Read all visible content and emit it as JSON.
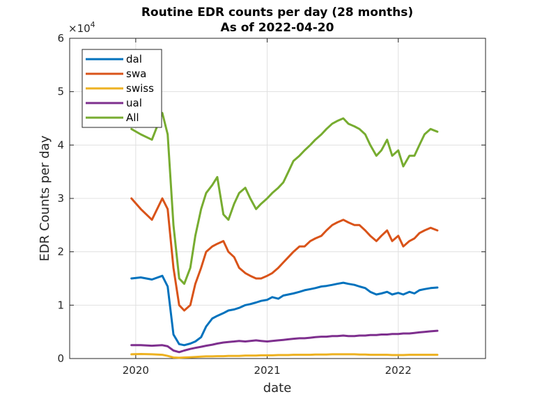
{
  "chart_data": {
    "type": "line",
    "title": "Routine EDR counts per day (28 months)",
    "subtitle": "As of 2022-04-20",
    "xlabel": "date",
    "ylabel": "EDR Counts per day",
    "y_exponent_label": "×10",
    "y_exponent_power": "4",
    "xlim": [
      "2019-07-01",
      "2022-09-01"
    ],
    "ylim": [
      0,
      60000
    ],
    "x_ticks": [
      "2020",
      "2021",
      "2022"
    ],
    "y_ticks": [
      "0",
      "1",
      "2",
      "3",
      "4",
      "5",
      "6"
    ],
    "grid": true,
    "legend_position": "top-left",
    "x": [
      "2019-12-20",
      "2020-01-15",
      "2020-02-15",
      "2020-03-15",
      "2020-03-30",
      "2020-04-15",
      "2020-05-01",
      "2020-05-15",
      "2020-06-01",
      "2020-06-15",
      "2020-07-01",
      "2020-07-15",
      "2020-08-01",
      "2020-08-15",
      "2020-09-01",
      "2020-09-15",
      "2020-10-01",
      "2020-10-15",
      "2020-11-01",
      "2020-11-15",
      "2020-12-01",
      "2020-12-15",
      "2021-01-01",
      "2021-01-15",
      "2021-02-01",
      "2021-02-15",
      "2021-03-01",
      "2021-03-15",
      "2021-04-01",
      "2021-04-15",
      "2021-05-01",
      "2021-05-15",
      "2021-06-01",
      "2021-06-15",
      "2021-07-01",
      "2021-07-15",
      "2021-08-01",
      "2021-08-15",
      "2021-09-01",
      "2021-09-15",
      "2021-10-01",
      "2021-10-15",
      "2021-11-01",
      "2021-11-15",
      "2021-12-01",
      "2021-12-15",
      "2022-01-01",
      "2022-01-15",
      "2022-02-01",
      "2022-02-15",
      "2022-03-01",
      "2022-03-15",
      "2022-04-01",
      "2022-04-20"
    ],
    "series": [
      {
        "name": "dal",
        "color": "#0072BD",
        "values": [
          15000,
          15200,
          14800,
          15500,
          13500,
          4500,
          2700,
          2500,
          2800,
          3200,
          4000,
          6000,
          7500,
          8000,
          8500,
          9000,
          9200,
          9500,
          10000,
          10200,
          10500,
          10800,
          11000,
          11500,
          11200,
          11800,
          12000,
          12200,
          12500,
          12800,
          13000,
          13200,
          13500,
          13600,
          13800,
          14000,
          14200,
          14000,
          13800,
          13500,
          13200,
          12500,
          12000,
          12200,
          12500,
          12000,
          12300,
          12000,
          12500,
          12200,
          12800,
          13000,
          13200,
          13300
        ]
      },
      {
        "name": "swa",
        "color": "#D95319",
        "values": [
          30000,
          28000,
          26000,
          30000,
          28000,
          17000,
          10000,
          9000,
          10000,
          14000,
          17000,
          20000,
          21000,
          21500,
          22000,
          20000,
          19000,
          17000,
          16000,
          15500,
          15000,
          15000,
          15500,
          16000,
          17000,
          18000,
          19000,
          20000,
          21000,
          21000,
          22000,
          22500,
          23000,
          24000,
          25000,
          25500,
          26000,
          25500,
          25000,
          25000,
          24000,
          23000,
          22000,
          23000,
          24000,
          22000,
          23000,
          21000,
          22000,
          22500,
          23500,
          24000,
          24500,
          24000
        ]
      },
      {
        "name": "swiss",
        "color": "#EDB120",
        "values": [
          800,
          850,
          800,
          700,
          500,
          200,
          150,
          200,
          250,
          300,
          350,
          400,
          400,
          450,
          450,
          500,
          500,
          500,
          550,
          550,
          550,
          600,
          600,
          600,
          650,
          650,
          650,
          700,
          700,
          700,
          700,
          750,
          750,
          750,
          800,
          800,
          800,
          800,
          800,
          750,
          750,
          700,
          700,
          700,
          700,
          650,
          650,
          650,
          700,
          700,
          700,
          700,
          700,
          700
        ]
      },
      {
        "name": "ual",
        "color": "#7E2F8E",
        "values": [
          2500,
          2500,
          2400,
          2500,
          2300,
          1500,
          1200,
          1500,
          1800,
          2000,
          2200,
          2400,
          2600,
          2800,
          3000,
          3100,
          3200,
          3300,
          3200,
          3300,
          3400,
          3300,
          3200,
          3300,
          3400,
          3500,
          3600,
          3700,
          3800,
          3800,
          3900,
          4000,
          4100,
          4100,
          4200,
          4200,
          4300,
          4200,
          4200,
          4300,
          4300,
          4400,
          4400,
          4500,
          4500,
          4600,
          4600,
          4700,
          4700,
          4800,
          4900,
          5000,
          5100,
          5200
        ]
      },
      {
        "name": "All",
        "color": "#77AC30",
        "values": [
          43000,
          42000,
          41000,
          46000,
          42000,
          25000,
          15000,
          14000,
          17000,
          23000,
          28000,
          31000,
          32500,
          34000,
          27000,
          26000,
          29000,
          31000,
          32000,
          30000,
          28000,
          29000,
          30000,
          31000,
          32000,
          33000,
          35000,
          37000,
          38000,
          39000,
          40000,
          41000,
          42000,
          43000,
          44000,
          44500,
          45000,
          44000,
          43500,
          43000,
          42000,
          40000,
          38000,
          39000,
          41000,
          38000,
          39000,
          36000,
          38000,
          38000,
          40000,
          42000,
          43000,
          42500
        ]
      }
    ]
  }
}
